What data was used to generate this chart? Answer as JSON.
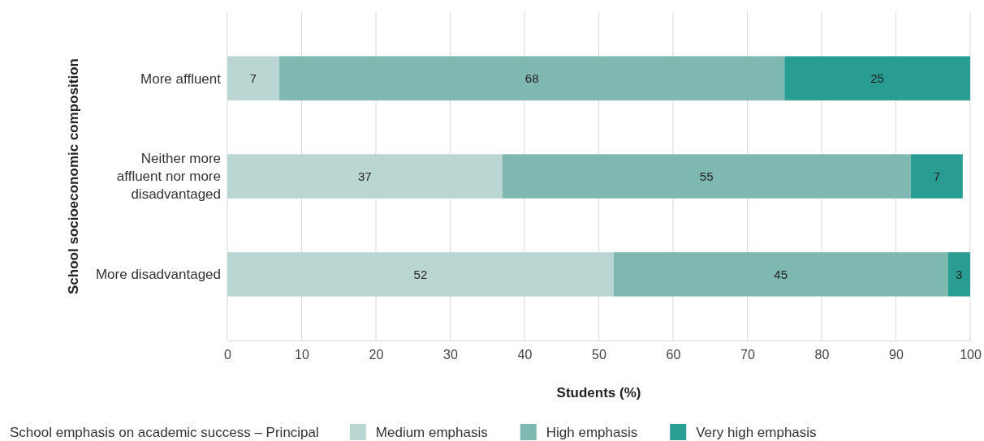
{
  "chart_data": {
    "type": "bar",
    "orientation": "horizontal",
    "stacked": true,
    "xlabel": "Students (%)",
    "ylabel": "School socioeconomic composition",
    "legend_title": "School emphasis on academic success – Principal",
    "categories": [
      "More affluent",
      "Neither more affluent nor more disadvantaged",
      "More disadvantaged"
    ],
    "series": [
      {
        "name": "Medium emphasis",
        "color": "#b9d6d2",
        "values": [
          7,
          37,
          52
        ]
      },
      {
        "name": "High emphasis",
        "color": "#7fb8b1",
        "values": [
          68,
          55,
          45
        ]
      },
      {
        "name": "Very high emphasis",
        "color": "#2a9d93",
        "values": [
          25,
          7,
          3
        ]
      }
    ],
    "xlim": [
      0,
      100
    ],
    "xticks": [
      0,
      10,
      20,
      30,
      40,
      50,
      60,
      70,
      80,
      90,
      100
    ],
    "grid": "x",
    "legend": "bottom",
    "data_labels": true
  }
}
